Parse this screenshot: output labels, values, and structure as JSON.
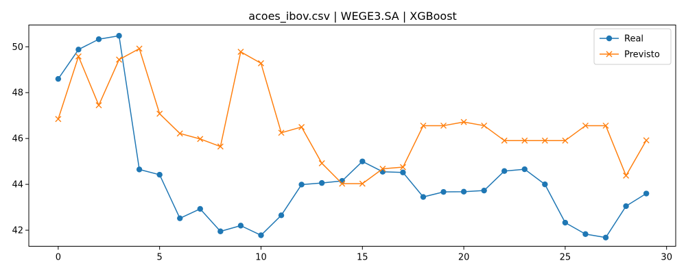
{
  "chart_data": {
    "type": "line",
    "title": "acoes_ibov.csv | WEGE3.SA | XGBoost",
    "xlabel": "",
    "ylabel": "",
    "xlim": [
      -1.45,
      30.45
    ],
    "ylim": [
      41.3,
      50.95
    ],
    "x_ticks": [
      0,
      5,
      10,
      15,
      20,
      25,
      30
    ],
    "y_ticks": [
      42,
      44,
      46,
      48,
      50
    ],
    "grid": false,
    "legend_position": "top-right",
    "x": [
      0,
      1,
      2,
      3,
      4,
      5,
      6,
      7,
      8,
      9,
      10,
      11,
      12,
      13,
      14,
      15,
      16,
      17,
      18,
      19,
      20,
      21,
      22,
      23,
      24,
      25,
      26,
      27,
      28,
      29
    ],
    "series": [
      {
        "name": "Real",
        "color": "#1f77b4",
        "marker": "circle",
        "values": [
          48.6,
          49.88,
          50.33,
          50.48,
          44.65,
          44.42,
          42.52,
          42.93,
          41.95,
          42.2,
          41.78,
          42.65,
          43.99,
          44.06,
          44.15,
          45.0,
          44.55,
          44.52,
          43.45,
          43.67,
          43.68,
          43.73,
          44.58,
          44.66,
          44.0,
          42.33,
          41.83,
          41.68,
          43.05,
          43.6
        ]
      },
      {
        "name": "Previsto",
        "color": "#ff7f0e",
        "marker": "x",
        "values": [
          46.85,
          49.58,
          47.45,
          49.44,
          49.92,
          47.08,
          46.22,
          45.98,
          45.65,
          49.78,
          49.28,
          46.25,
          46.5,
          44.92,
          44.03,
          44.03,
          44.68,
          44.75,
          46.56,
          46.56,
          46.72,
          46.56,
          45.91,
          45.91,
          45.91,
          45.91,
          46.56,
          46.56,
          44.38,
          45.92
        ]
      }
    ]
  }
}
